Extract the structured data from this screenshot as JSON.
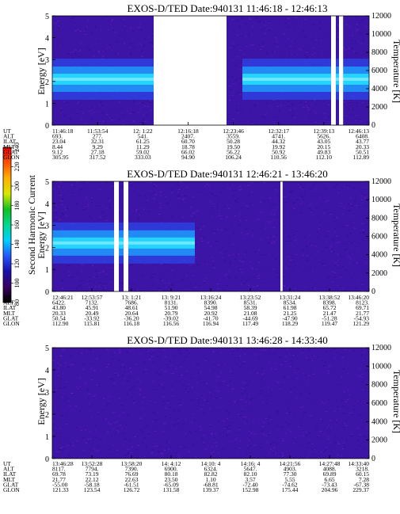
{
  "colors": {
    "plot_background": "#3c14a6",
    "speckle_low": "#2c0f86",
    "speckle_high": "#6a1fc2",
    "gap": "#ffffff"
  },
  "colorbar": {
    "label": "Second Harmonic Current",
    "ticks": [
      "80",
      "100",
      "120",
      "140",
      "160",
      "180",
      "200",
      "220",
      "240"
    ],
    "stops": [
      "#000000",
      "#3a0060",
      "#1a0fa8",
      "#2357ff",
      "#00d0ff",
      "#00d890",
      "#10c020",
      "#d8e800",
      "#ffb000",
      "#ff5000",
      "#ff0000"
    ]
  },
  "chart_data": [
    {
      "type": "heatmap",
      "title": "EXOS-D/TED   Date:940131   11:46:18 - 12:46:13",
      "ylabel": "Energy [eV]",
      "ylabel_right": "Temperature [K]",
      "ylim": [
        0,
        5
      ],
      "ylim_right": [
        0,
        12000
      ],
      "yticks": [
        "0",
        "1",
        "2",
        "3",
        "4",
        "5"
      ],
      "yticks_right": [
        "0",
        "2000",
        "4000",
        "6000",
        "8000",
        "10000",
        "12000"
      ],
      "orbit_labels": [
        "UT",
        "ALT",
        "ILAT",
        "MLT",
        "GLAT",
        "GLON"
      ],
      "orbit_columns": [
        [
          "11:46:18",
          "693.",
          "23.04",
          "8.44",
          "9.12",
          "305.95"
        ],
        [
          "11:53:54",
          "277.",
          "32.31",
          "9.29",
          "27.18",
          "317.52"
        ],
        [
          "12: 1:22",
          "541.",
          "61.25",
          "11.29",
          "59.02",
          "333.03"
        ],
        [
          "12:16:18",
          "2407.",
          "60.70",
          "18.78",
          "66.02",
          "94.90"
        ],
        [
          "12:23:46",
          "3559.",
          "50.28",
          "19.50",
          "56.22",
          "106.24"
        ],
        [
          "12:32:17",
          "4741.",
          "44.32",
          "19.92",
          "50.92",
          "110.56"
        ],
        [
          "12:39:13",
          "5626.",
          "43.05",
          "20.15",
          "49.83",
          "112.10"
        ],
        [
          "12:46:13",
          "6408.",
          "43.77",
          "20.33",
          "50.51",
          "112.89"
        ]
      ],
      "data_gaps": [
        [
          0.32,
          0.55
        ],
        [
          0.88,
          0.895
        ],
        [
          0.905,
          0.918
        ]
      ],
      "band_energy_ev": 2.1,
      "band_segments": [
        [
          0.0,
          0.32
        ],
        [
          0.6,
          1.0
        ]
      ]
    },
    {
      "type": "heatmap",
      "title": "EXOS-D/TED   Date:940131   12:46:21 - 13:46:20",
      "ylabel": "Energy [eV]",
      "ylabel_right": "Temperature [K]",
      "ylim": [
        0,
        5
      ],
      "ylim_right": [
        0,
        12000
      ],
      "yticks": [
        "0",
        "1",
        "2",
        "3",
        "4",
        "5"
      ],
      "yticks_right": [
        "0",
        "2000",
        "4000",
        "6000",
        "8000",
        "10000",
        "12000"
      ],
      "orbit_labels": [
        "UT",
        "ALT",
        "ILAT",
        "MLT",
        "GLAT",
        "GLON"
      ],
      "orbit_columns": [
        [
          "12:46:21",
          "6422.",
          "43.80",
          "20.33",
          "50.54",
          "112.90"
        ],
        [
          "12:53:57",
          "7132.",
          "45.91",
          "20.49",
          "-33.92",
          "115.81"
        ],
        [
          "13: 1:21",
          "7686.",
          "48.61",
          "20.64",
          "-36.20",
          "116.18"
        ],
        [
          "13: 9:21",
          "8131.",
          "51.90",
          "20.79",
          "-39.02",
          "116.56"
        ],
        [
          "13:16:24",
          "8390.",
          "54.98",
          "20.92",
          "-41.70",
          "116.94"
        ],
        [
          "13:23:52",
          "8531.",
          "58.39",
          "21.08",
          "-44.69",
          "117.49"
        ],
        [
          "13:31:24",
          "8534.",
          "61.98",
          "21.25",
          "-47.90",
          "118.29"
        ],
        [
          "13:38:52",
          "8398.",
          "65.72",
          "21.47",
          "-51.28",
          "119.47"
        ],
        [
          "13:46:20",
          "8123.",
          "69.71",
          "21.77",
          "-54.93",
          "121.29"
        ]
      ],
      "data_gaps": [
        [
          0.195,
          0.21
        ],
        [
          0.225,
          0.24
        ],
        [
          0.72,
          0.727
        ]
      ],
      "band_energy_ev": 2.2,
      "band_segments": [
        [
          0.0,
          0.45
        ]
      ]
    },
    {
      "type": "heatmap",
      "title": "EXOS-D/TED   Date:940131   13:46:28 - 14:33:40",
      "ylabel": "Energy [eV]",
      "ylabel_right": "Temperature [K]",
      "ylim": [
        0,
        5
      ],
      "ylim_right": [
        0,
        12000
      ],
      "yticks": [
        "0",
        "1",
        "2",
        "3",
        "4",
        "5"
      ],
      "yticks_right": [
        "0",
        "2000",
        "4000",
        "6000",
        "8000",
        "10000",
        "12000"
      ],
      "orbit_labels": [
        "UT",
        "ALT",
        "ILAT",
        "MLT",
        "GLAT",
        "GLON"
      ],
      "orbit_columns": [
        [
          "13:46:28",
          "8117.",
          "69.78",
          "21.77",
          "-55.00",
          "121.33"
        ],
        [
          "13:52:28",
          "7794.",
          "73.19",
          "22.12",
          "-58.18",
          "123.54"
        ],
        [
          "13:58:20",
          "7390.",
          "76.69",
          "22.63",
          "-61.51",
          "126.72"
        ],
        [
          "14: 4:12",
          "6900.",
          "80.18",
          "23.50",
          "-65.09",
          "131.58"
        ],
        [
          "14:10: 4",
          "6324.",
          "82.82",
          "1.10",
          "-68.81",
          "139.37"
        ],
        [
          "14:16: 4",
          "5647.",
          "82.10",
          "3.57",
          "-72.40",
          "152.98"
        ],
        [
          "14:21:56",
          "4903.",
          "77.30",
          "5.55",
          "-74.62",
          "175.44"
        ],
        [
          "14:27:48",
          "4088.",
          "69.89",
          "6.65",
          "-73.43",
          "204.96"
        ],
        [
          "14:33:40",
          "3218.",
          "60.15",
          "7.28",
          "-67.38",
          "229.37"
        ]
      ],
      "data_gaps": [],
      "band_energy_ev": null,
      "band_segments": []
    }
  ]
}
